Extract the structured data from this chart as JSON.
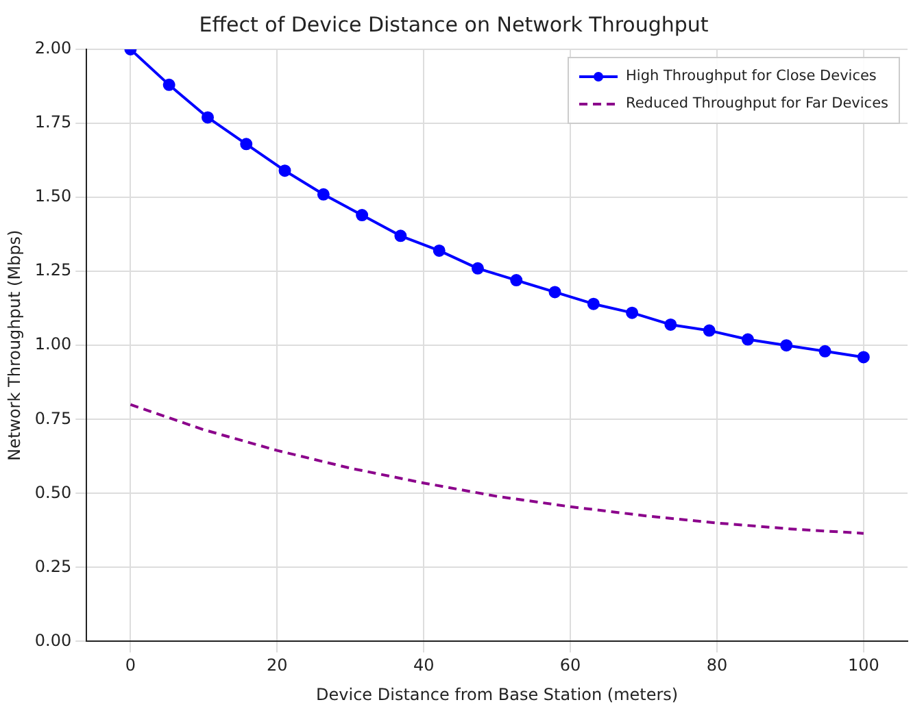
{
  "chart_data": {
    "type": "line",
    "title": "Effect of Device Distance on Network Throughput",
    "xlabel": "Device Distance from Base Station (meters)",
    "ylabel": "Network Throughput (Mbps)",
    "xlim": [
      -6,
      106
    ],
    "xticks": [
      0,
      20,
      40,
      60,
      80,
      100
    ],
    "ylim": [
      0,
      2
    ],
    "yticks": [
      {
        "value": 0,
        "label": "0.00"
      },
      {
        "value": 0.25,
        "label": "0.25"
      },
      {
        "value": 0.5,
        "label": "0.50"
      },
      {
        "value": 0.75,
        "label": "0.75"
      },
      {
        "value": 1,
        "label": "1.00"
      },
      {
        "value": 1.25,
        "label": "1.25"
      },
      {
        "value": 1.5,
        "label": "1.50"
      },
      {
        "value": 1.75,
        "label": "1.75"
      },
      {
        "value": 2,
        "label": "2.00"
      }
    ],
    "grid": true,
    "legend": "top right",
    "series": [
      {
        "name": "High Throughput for Close Devices",
        "color": "#0000ff",
        "marker": "circle",
        "line_style": "solid",
        "x": [
          0,
          5.26,
          10.53,
          15.79,
          21.05,
          26.32,
          31.58,
          36.84,
          42.11,
          47.37,
          52.63,
          57.89,
          63.16,
          68.42,
          73.68,
          78.95,
          84.21,
          89.47,
          94.74,
          100
        ],
        "values": [
          2.0,
          1.88,
          1.77,
          1.68,
          1.59,
          1.51,
          1.44,
          1.37,
          1.32,
          1.26,
          1.22,
          1.18,
          1.14,
          1.11,
          1.07,
          1.05,
          1.02,
          1.0,
          0.98,
          0.96
        ]
      },
      {
        "name": "Reduced Throughput for Far Devices",
        "color": "#8b008b",
        "marker": "none",
        "line_style": "dashed",
        "x": [
          0,
          10,
          20,
          30,
          40,
          50,
          60,
          70,
          80,
          90,
          100
        ],
        "values": [
          0.8,
          0.715,
          0.645,
          0.585,
          0.535,
          0.49,
          0.455,
          0.425,
          0.4,
          0.38,
          0.365
        ]
      }
    ]
  }
}
